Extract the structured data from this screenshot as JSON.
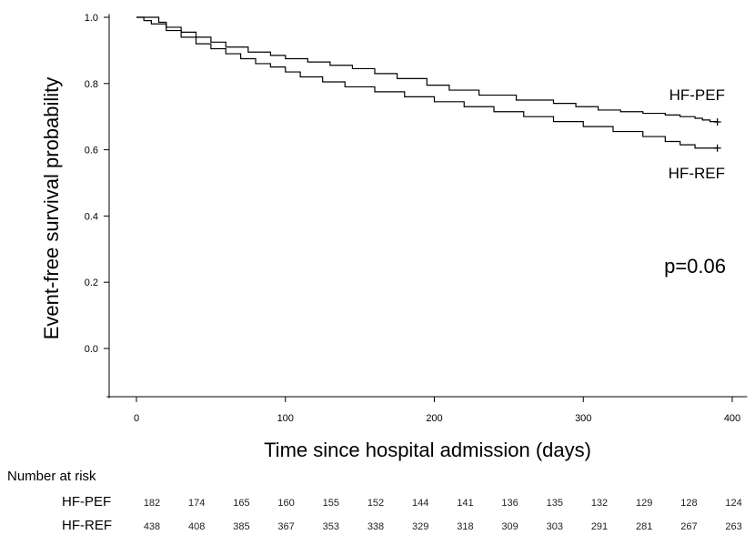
{
  "chart_data": {
    "type": "line",
    "xlabel": "Time since hospital admission (days)",
    "ylabel": "Event-free survival probability",
    "xlim": [
      -20,
      410
    ],
    "ylim": [
      -0.15,
      1.01
    ],
    "xticks": [
      0,
      100,
      200,
      300,
      400
    ],
    "xtick_labels": [
      "0",
      "100",
      "200",
      "300",
      "400"
    ],
    "yticks": [
      0.0,
      0.2,
      0.4,
      0.6,
      0.8,
      1.0
    ],
    "ytick_labels": [
      "0.0",
      "0.2",
      "0.4",
      "0.6",
      "0.8",
      "1.0"
    ],
    "grid": false,
    "annotation": "p=0.06",
    "series": [
      {
        "name": "HF-PEF",
        "color": "#000000",
        "censor_mark": [
          390,
          0.684
        ],
        "x": [
          0,
          12,
          15,
          20,
          30,
          40,
          50,
          60,
          75,
          90,
          100,
          115,
          130,
          145,
          160,
          175,
          195,
          210,
          230,
          255,
          280,
          295,
          310,
          325,
          340,
          355,
          365,
          375,
          380,
          385,
          390
        ],
        "y": [
          1.0,
          1.0,
          0.985,
          0.97,
          0.955,
          0.94,
          0.925,
          0.91,
          0.895,
          0.885,
          0.875,
          0.865,
          0.855,
          0.845,
          0.83,
          0.815,
          0.795,
          0.78,
          0.765,
          0.75,
          0.74,
          0.73,
          0.72,
          0.715,
          0.71,
          0.705,
          0.7,
          0.695,
          0.69,
          0.685,
          0.684
        ]
      },
      {
        "name": "HF-REF",
        "color": "#000000",
        "censor_mark": [
          390,
          0.605
        ],
        "x": [
          0,
          5,
          10,
          20,
          30,
          40,
          50,
          60,
          70,
          80,
          90,
          100,
          110,
          125,
          140,
          160,
          180,
          200,
          220,
          240,
          260,
          280,
          300,
          320,
          340,
          355,
          365,
          375,
          390
        ],
        "y": [
          1.0,
          0.99,
          0.98,
          0.96,
          0.94,
          0.92,
          0.905,
          0.89,
          0.875,
          0.86,
          0.85,
          0.835,
          0.82,
          0.805,
          0.79,
          0.775,
          0.76,
          0.745,
          0.73,
          0.715,
          0.7,
          0.685,
          0.67,
          0.655,
          0.64,
          0.625,
          0.615,
          0.605,
          0.605
        ]
      }
    ]
  },
  "risk_table": {
    "title": "Number at risk",
    "times": [
      0,
      30,
      60,
      90,
      120,
      150,
      180,
      210,
      240,
      270,
      300,
      330,
      360,
      390
    ],
    "rows": [
      {
        "label": "HF-PEF",
        "values": [
          "182",
          "174",
          "165",
          "160",
          "155",
          "152",
          "144",
          "141",
          "136",
          "135",
          "132",
          "129",
          "128",
          "124"
        ]
      },
      {
        "label": "HF-REF",
        "values": [
          "438",
          "408",
          "385",
          "367",
          "353",
          "338",
          "329",
          "318",
          "309",
          "303",
          "291",
          "281",
          "267",
          "263"
        ]
      }
    ]
  }
}
